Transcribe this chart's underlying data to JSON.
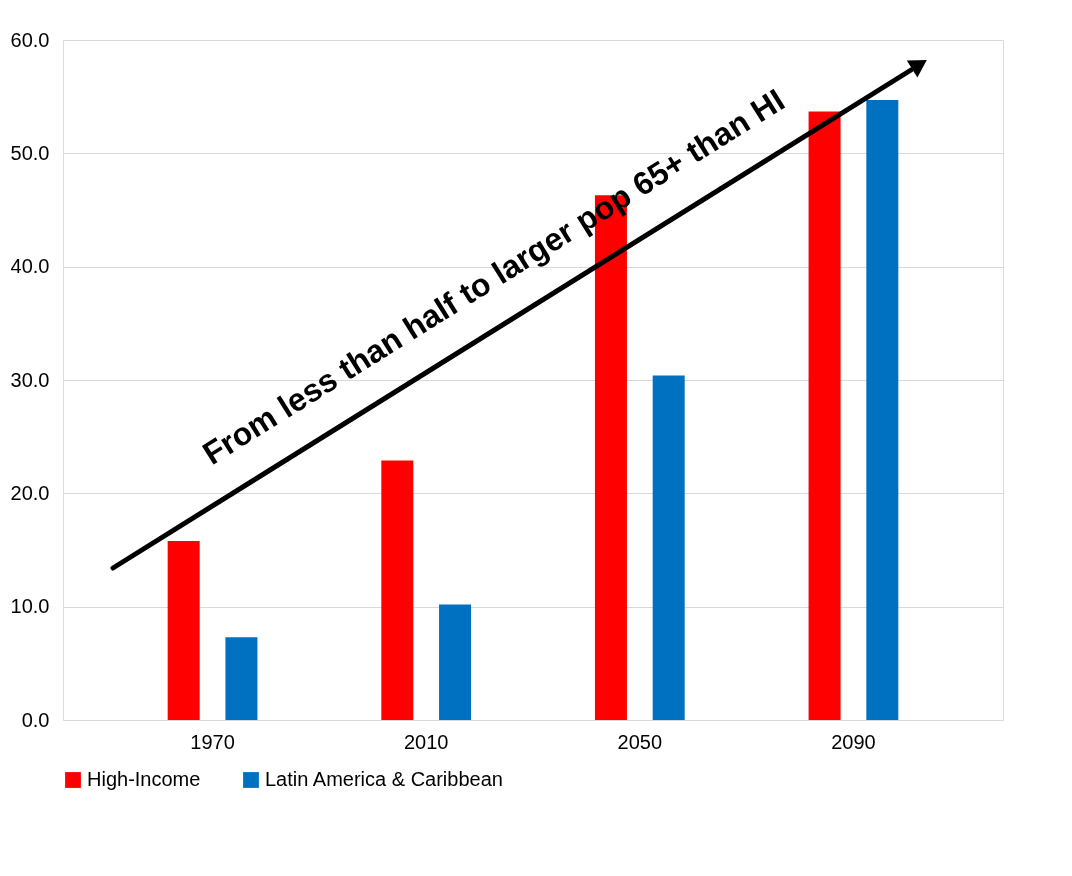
{
  "chart_data": {
    "type": "bar",
    "categories": [
      "1970",
      "2010",
      "2050",
      "2090"
    ],
    "series": [
      {
        "name": "High-Income",
        "color": "#ff0000",
        "values": [
          15.8,
          22.9,
          46.3,
          53.7
        ]
      },
      {
        "name": "Latin America & Caribbean",
        "color": "#0070c0",
        "values": [
          7.3,
          10.2,
          30.4,
          54.7
        ]
      }
    ],
    "ylim": [
      0,
      60
    ],
    "yticks": [
      {
        "value": 0,
        "label": "0.0"
      },
      {
        "value": 10,
        "label": "10.0"
      },
      {
        "value": 20,
        "label": "20.0"
      },
      {
        "value": 30,
        "label": "30.0"
      },
      {
        "value": 40,
        "label": "40.0"
      },
      {
        "value": 50,
        "label": "50.0"
      },
      {
        "value": 60,
        "label": "60.0"
      }
    ],
    "grid": "y",
    "legend": "bottom",
    "annotations": [
      "From less than half to larger pop 65+ than HI"
    ]
  }
}
